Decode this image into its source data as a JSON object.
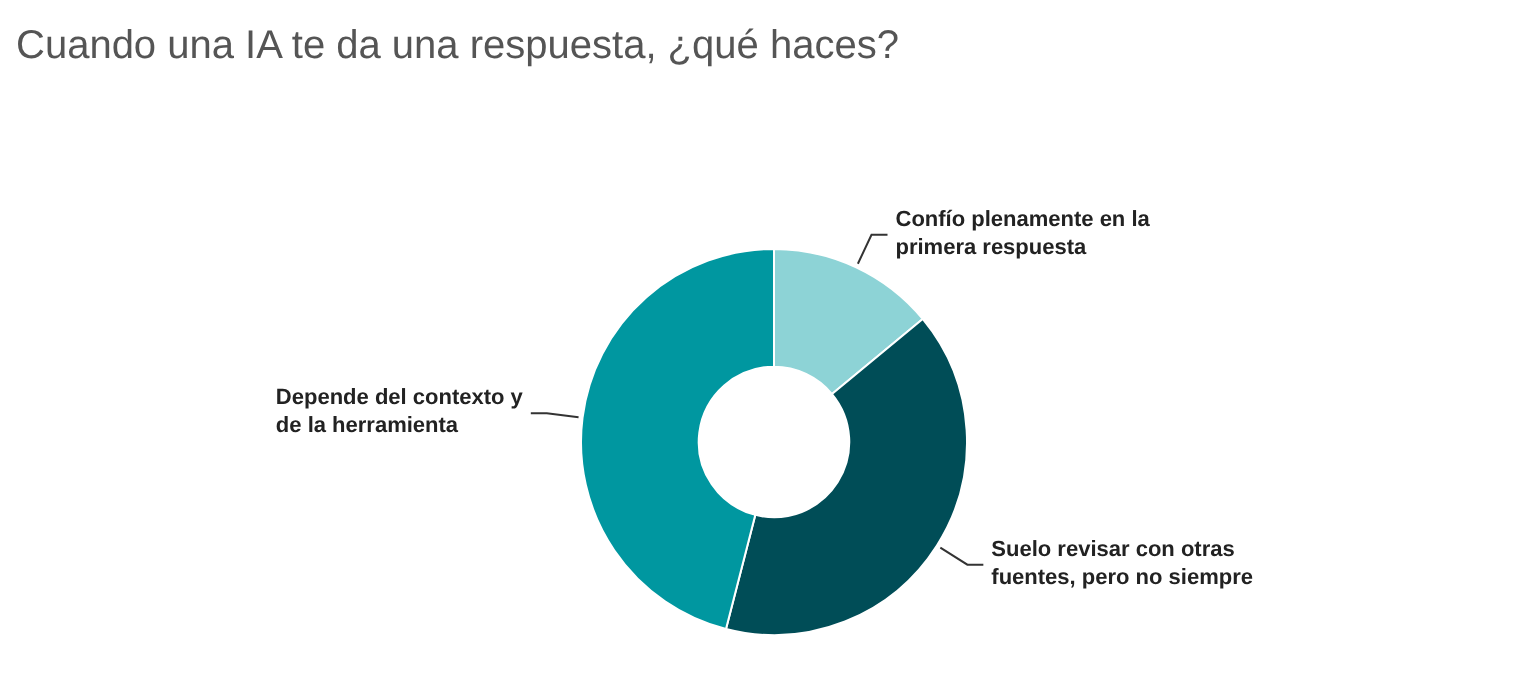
{
  "chart_data": {
    "type": "donut",
    "title": "Cuando una IA te da una respuesta, ¿qué haces?",
    "categories": [
      "Confío plenamente en la primera respuesta",
      "Suelo revisar con otras fuentes, pero no siempre",
      "Depende del contexto y de la herramienta"
    ],
    "values": [
      14,
      40,
      46
    ],
    "colors": [
      "#8dd3d6",
      "#004d57",
      "#0097a0"
    ],
    "legend": false
  }
}
